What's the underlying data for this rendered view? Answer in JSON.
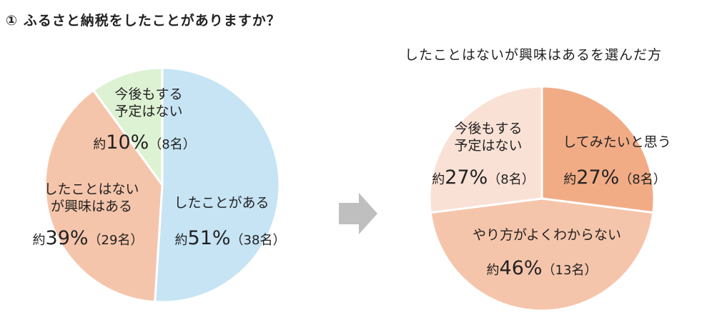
{
  "title": "① ふるさと納税をしたことがありますか？",
  "chart_data": [
    {
      "type": "pie",
      "title": "ふるさと納税をしたことがありますか？",
      "start": "top-clockwise",
      "slices": [
        {
          "label": "したことがある",
          "prefix": "約",
          "pct_text": "51%",
          "count_text": "（38名）",
          "value": 51,
          "count": 38,
          "color": "#C6E4F4"
        },
        {
          "label": "したことはないが興味はある",
          "label_lines": [
            "したことはない",
            "が興味はある"
          ],
          "prefix": "約",
          "pct_text": "39%",
          "count_text": "（29名）",
          "value": 39,
          "count": 29,
          "color": "#F5C5AB"
        },
        {
          "label": "今後もする予定はない",
          "label_lines": [
            "今後もする",
            "予定はない"
          ],
          "prefix": "約",
          "pct_text": "10%",
          "count_text": "（8名）",
          "value": 10,
          "count": 8,
          "color": "#DDF2D3"
        }
      ]
    },
    {
      "type": "pie",
      "title": "したことはないが興味はあるを選んだ方",
      "start": "top-clockwise",
      "slices": [
        {
          "label": "してみたいと思う",
          "prefix": "約",
          "pct_text": "27%",
          "count_text": "（8名）",
          "value": 27,
          "count": 8,
          "color": "#F1AC86"
        },
        {
          "label": "やり方がよくわからない",
          "prefix": "約",
          "pct_text": "46%",
          "count_text": "（13名）",
          "value": 46,
          "count": 13,
          "color": "#F5C5AB"
        },
        {
          "label": "今後もする予定はない",
          "label_lines": [
            "今後もする",
            "予定はない"
          ],
          "prefix": "約",
          "pct_text": "27%",
          "count_text": "（8名）",
          "value": 27,
          "count": 8,
          "color": "#FAE1D5"
        }
      ]
    }
  ],
  "arrow_color": "#BFBFBF"
}
